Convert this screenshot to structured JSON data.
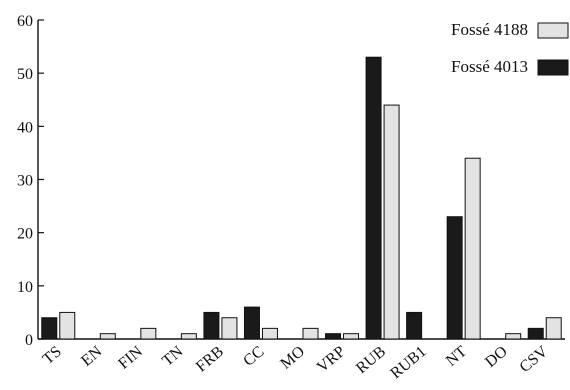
{
  "chart_data": {
    "type": "bar",
    "categories": [
      "TS",
      "EN",
      "FIN",
      "TN",
      "FRB",
      "CC",
      "MO",
      "VRP",
      "RUB",
      "RUB1",
      "NT",
      "DO",
      "CSV"
    ],
    "series": [
      {
        "name": "Fossé 4013",
        "color": "#1a1a1a",
        "values": [
          4,
          0,
          0,
          0,
          5,
          6,
          0,
          1,
          53,
          5,
          23,
          0,
          2
        ]
      },
      {
        "name": "Fossé 4188",
        "color": "#e3e3e3",
        "values": [
          5,
          1,
          2,
          1,
          4,
          2,
          2,
          1,
          44,
          0,
          34,
          1,
          4
        ]
      }
    ],
    "ylim": [
      0,
      60
    ],
    "yticks": [
      0,
      10,
      20,
      30,
      40,
      50,
      60
    ],
    "legend": {
      "position": "top-right",
      "order": [
        "Fossé 4188",
        "Fossé 4013"
      ]
    },
    "title": "",
    "xlabel": "",
    "ylabel": ""
  }
}
